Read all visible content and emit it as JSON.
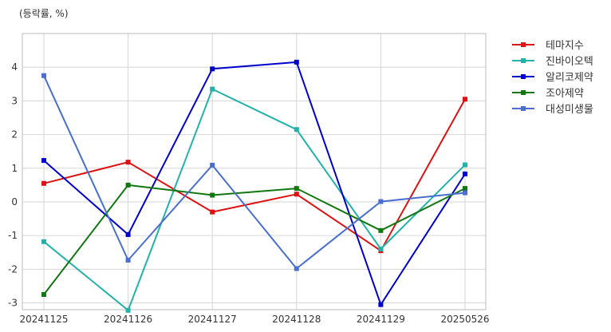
{
  "chart_data": {
    "type": "line",
    "unit_label": "(등락률, %)",
    "x": [
      "20241125",
      "20241126",
      "20241127",
      "20241128",
      "20241129",
      "20250526"
    ],
    "ylim": [
      -3.2,
      5.0
    ],
    "yticks": [
      -3,
      -2,
      -1,
      0,
      1,
      2,
      3,
      4
    ],
    "grid": true,
    "legend_position": "right",
    "series": [
      {
        "name": "테마지수",
        "color": "#dd1111",
        "values": [
          0.55,
          1.18,
          -0.3,
          0.23,
          -1.45,
          3.05
        ]
      },
      {
        "name": "진바이오텍",
        "color": "#22b2aa",
        "values": [
          -1.18,
          -3.22,
          3.35,
          2.15,
          -1.4,
          1.1
        ]
      },
      {
        "name": "알리코제약",
        "color": "#0000cc",
        "values": [
          1.23,
          -0.97,
          3.95,
          4.15,
          -3.05,
          0.83
        ]
      },
      {
        "name": "조아제약",
        "color": "#117711",
        "values": [
          -2.75,
          0.5,
          0.2,
          0.4,
          -0.85,
          0.4
        ]
      },
      {
        "name": "대성미생물",
        "color": "#4a6ed0",
        "values": [
          3.75,
          -1.73,
          1.09,
          -1.98,
          0.01,
          0.27
        ]
      }
    ]
  }
}
